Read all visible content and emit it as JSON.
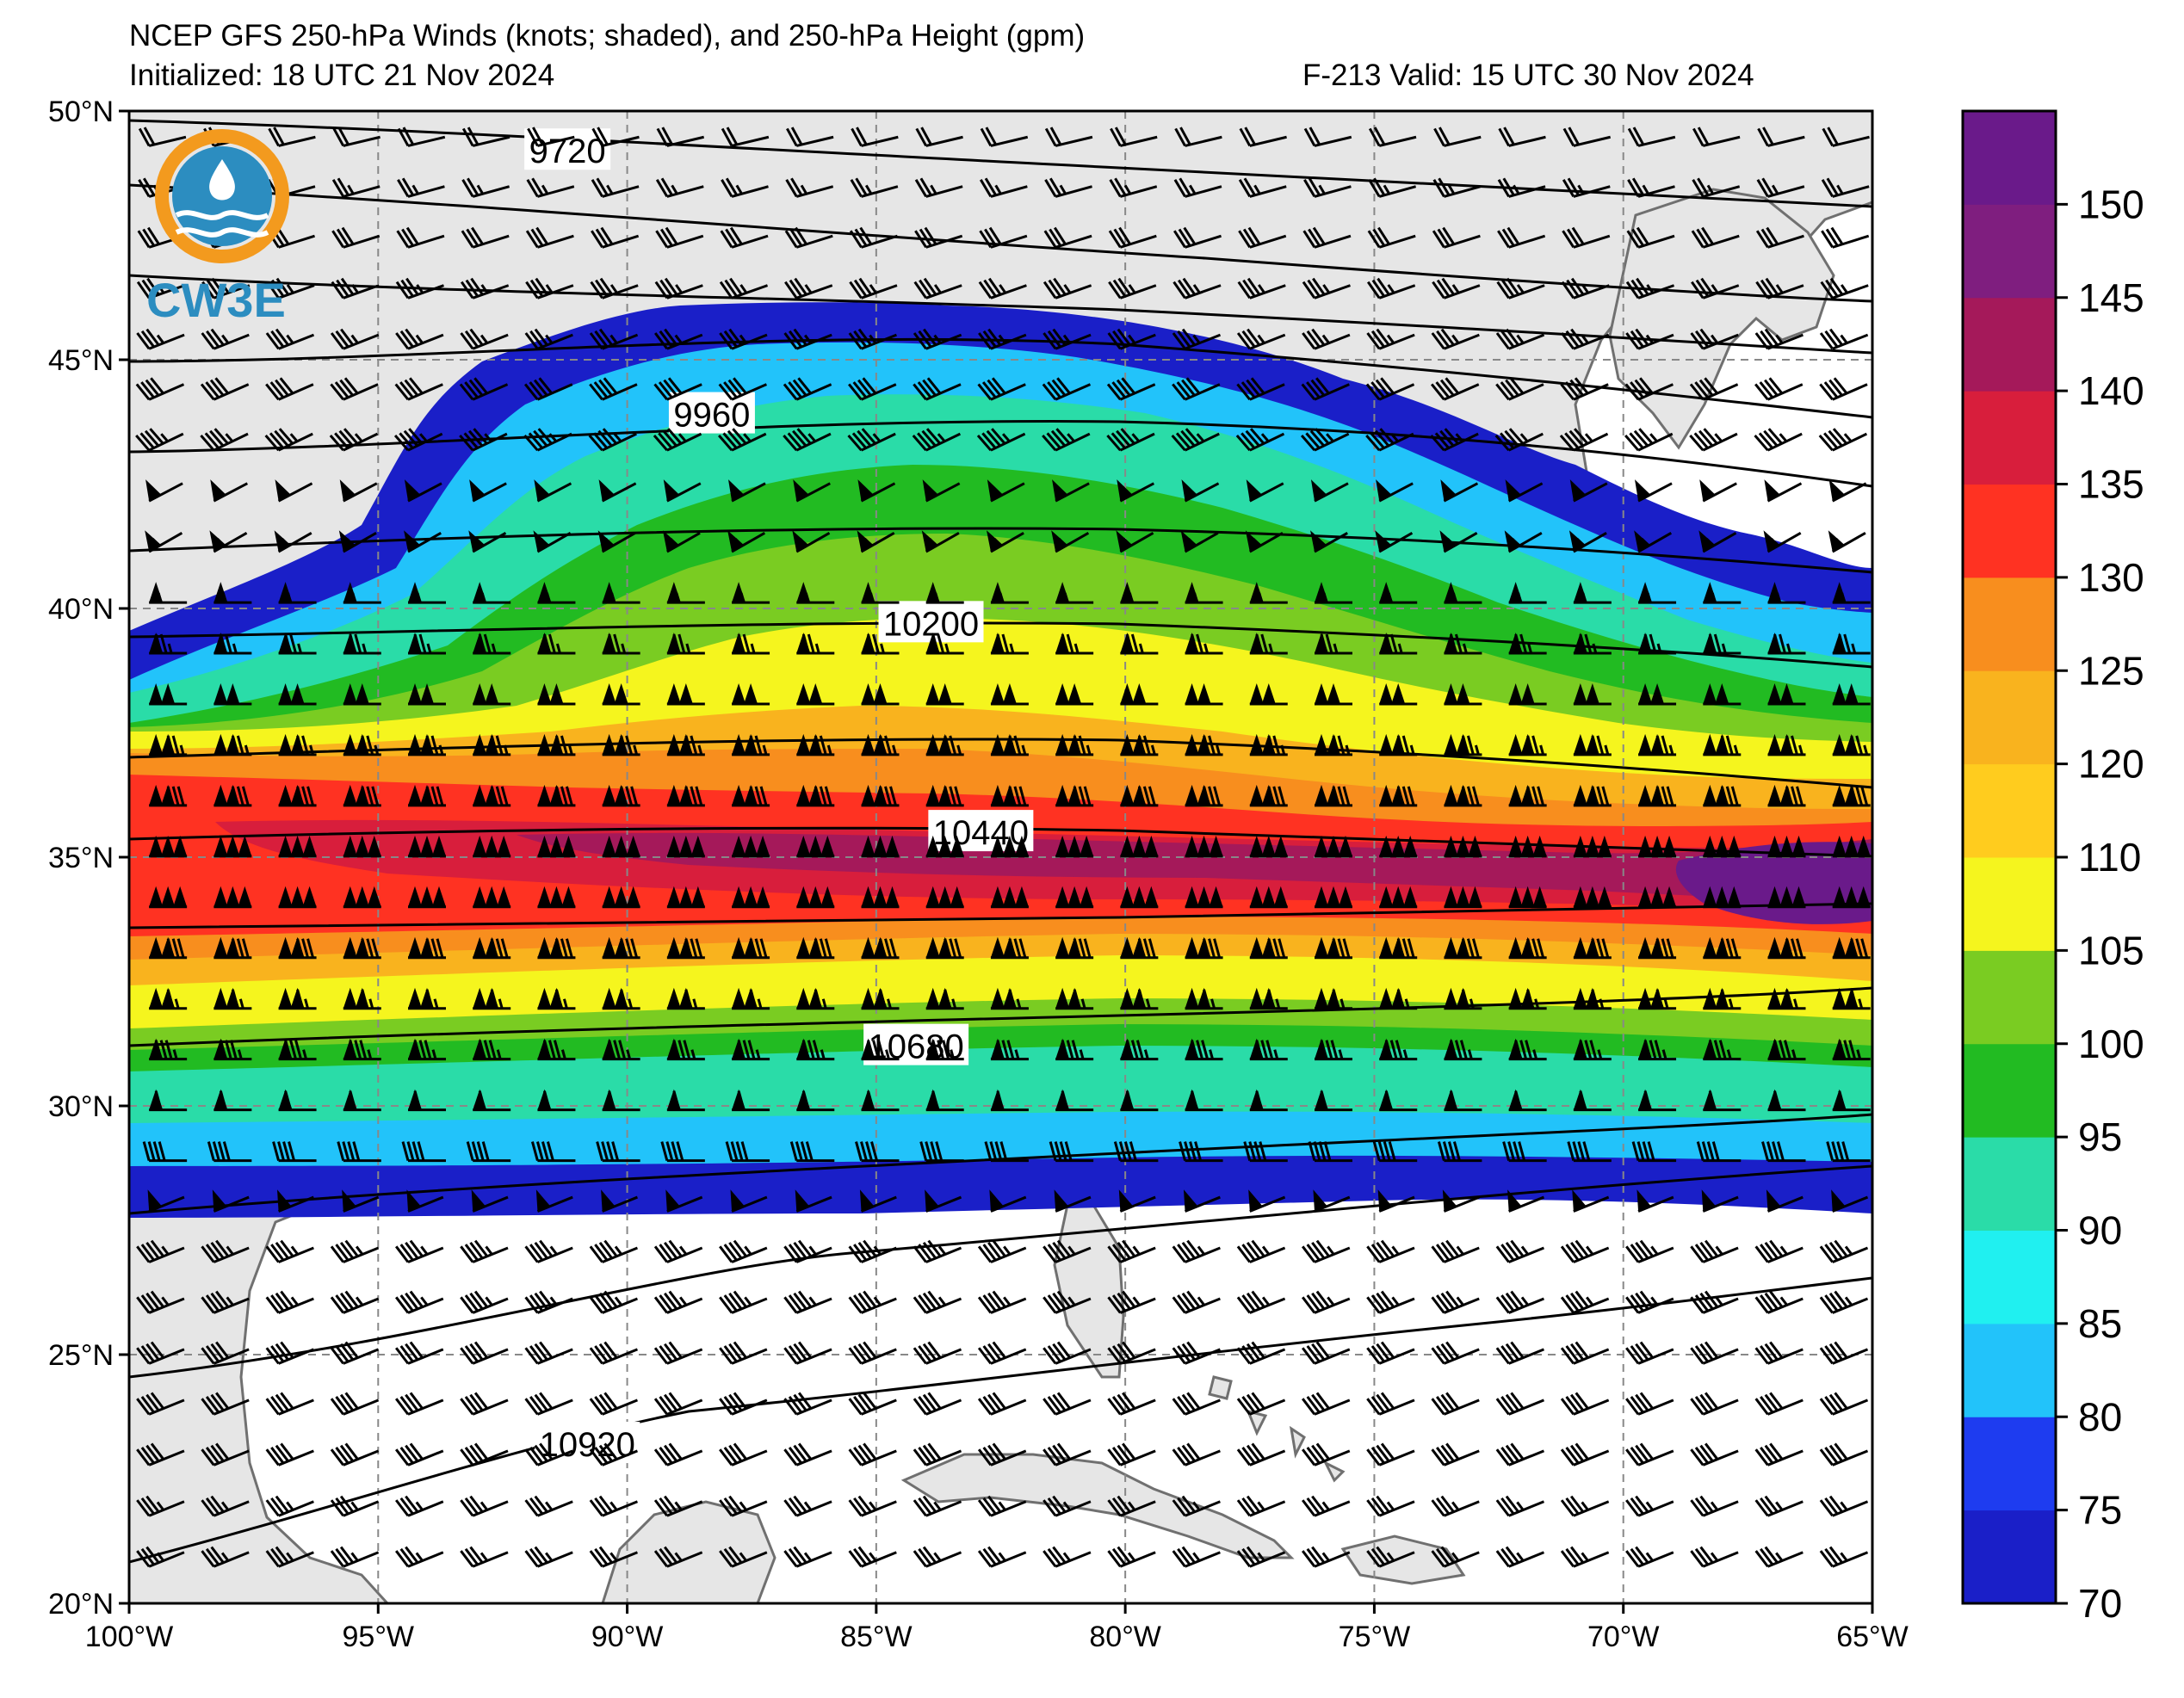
{
  "header": {
    "title": "NCEP GFS 250-hPa Winds (knots; shaded), and 250-hPa Height (gpm)",
    "initialized": "Initialized: 18 UTC 21 Nov 2024",
    "valid": "F-213  Valid: 15 UTC 30 Nov 2024"
  },
  "logo": {
    "text": "CW3E"
  },
  "map": {
    "lon_range": [
      -100,
      -65
    ],
    "lat_range": [
      20,
      50
    ],
    "x_ticks": [
      "100°W",
      "95°W",
      "90°W",
      "85°W",
      "80°W",
      "75°W",
      "70°W",
      "65°W"
    ],
    "y_ticks": [
      "50°N",
      "45°N",
      "40°N",
      "35°N",
      "30°N",
      "25°N",
      "20°N"
    ],
    "gridlines": true,
    "land_color": "#e6e6e6",
    "ocean_color": "#ffffff",
    "coast_color": "#707070"
  },
  "colorbar": {
    "levels": [
      70,
      75,
      80,
      85,
      90,
      95,
      100,
      105,
      110,
      120,
      125,
      130,
      135,
      140,
      145,
      150,
      155
    ],
    "labels": [
      "70",
      "75",
      "80",
      "85",
      "90",
      "95",
      "100",
      "105",
      "110",
      "120",
      "125",
      "130",
      "135",
      "140",
      "145",
      "150"
    ],
    "colors": [
      "#1a1fc8",
      "#1e3cf0",
      "#22c3fa",
      "#20f0f0",
      "#2adca8",
      "#22bb22",
      "#7acc22",
      "#f5f51e",
      "#ffcc1e",
      "#f9b31e",
      "#f88e1e",
      "#ff3222",
      "#d81e3c",
      "#a5195a",
      "#7f1e7f",
      "#6a1a8a"
    ]
  },
  "contours": {
    "labels": [
      {
        "text": "9720",
        "lon": -91.2,
        "lat": 49.2
      },
      {
        "text": "9960",
        "lon": -88.3,
        "lat": 43.9
      },
      {
        "text": "10200",
        "lon": -83.9,
        "lat": 39.7
      },
      {
        "text": "10440",
        "lon": -82.9,
        "lat": 35.5
      },
      {
        "text": "10680",
        "lon": -84.2,
        "lat": 31.2
      },
      {
        "text": "10920",
        "lon": -90.8,
        "lat": 23.2
      }
    ]
  }
}
